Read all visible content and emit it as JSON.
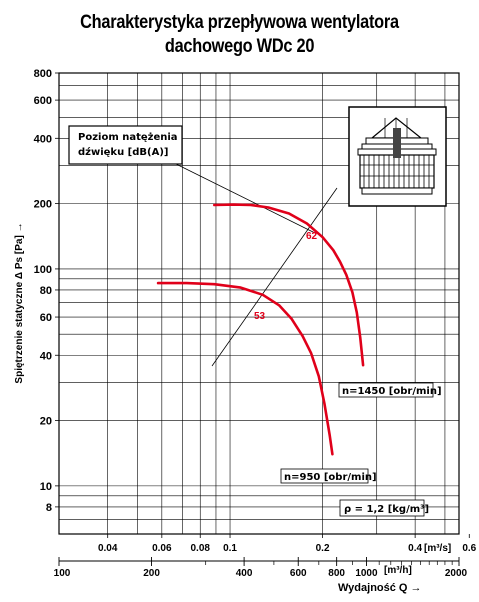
{
  "title_line1": "Charakterystyka przepływowa wentylatora",
  "title_line2": "dachowego WDc 20",
  "chart_data": {
    "type": "line",
    "ylabel": "Spiętrzenie statyczne Δ Ps [Pa] →",
    "y_scale": "log",
    "ylim": [
      6,
      800
    ],
    "y_ticks": [
      800,
      600,
      400,
      200,
      100,
      80,
      60,
      40,
      20,
      10,
      8
    ],
    "x_scale": "log",
    "xlim_m3h": [
      100,
      2000
    ],
    "x_ticks_m3h": [
      100,
      200,
      400,
      600,
      800,
      1000,
      2000
    ],
    "x_unit_m3h": "[m³/h]",
    "xlabel": "Wydajność Q →",
    "x_ticks_m3s": [
      "0.04",
      "0.06",
      "0.08",
      "0.1",
      "0.2",
      "0.4",
      "0.6"
    ],
    "x_unit_m3s": "[m³/s]",
    "series": [
      {
        "name": "n=1450 [obr/min]",
        "color": "#e0001a",
        "points": [
          [
            320,
            197
          ],
          [
            370,
            198
          ],
          [
            420,
            197
          ],
          [
            480,
            192
          ],
          [
            560,
            180
          ],
          [
            640,
            162
          ],
          [
            720,
            140
          ],
          [
            780,
            122
          ],
          [
            820,
            108
          ],
          [
            860,
            94
          ],
          [
            900,
            78
          ],
          [
            930,
            63
          ],
          [
            955,
            48
          ],
          [
            975,
            36
          ]
        ]
      },
      {
        "name": "n=950 [obr/min]",
        "color": "#e0001a",
        "points": [
          [
            210,
            86
          ],
          [
            260,
            86
          ],
          [
            320,
            85
          ],
          [
            390,
            82
          ],
          [
            460,
            76
          ],
          [
            520,
            68
          ],
          [
            570,
            59
          ],
          [
            620,
            49
          ],
          [
            660,
            41
          ],
          [
            700,
            32
          ],
          [
            730,
            24
          ],
          [
            760,
            17
          ],
          [
            775,
            14
          ]
        ]
      }
    ],
    "noise_labels": [
      "62",
      "53"
    ],
    "noise_box_label": [
      "Poziom natężenia",
      "dźwięku [dB(A)]"
    ],
    "density_label": "ρ = 1,2 [kg/m³]",
    "grid": true,
    "inset": "fan-icon"
  }
}
